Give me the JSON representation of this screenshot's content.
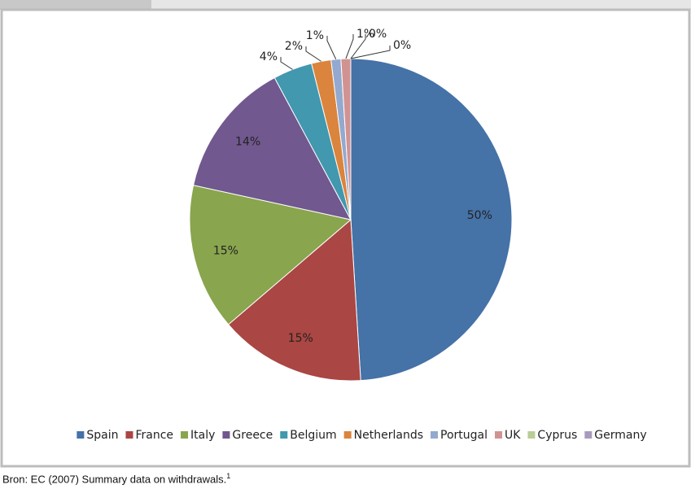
{
  "chart_data": {
    "type": "pie",
    "categories": [
      "Spain",
      "France",
      "Italy",
      "Greece",
      "Belgium",
      "Netherlands",
      "Portugal",
      "UK",
      "Cyprus",
      "Germany"
    ],
    "values": [
      50,
      15,
      15,
      14,
      4,
      2,
      1,
      1,
      0,
      0
    ],
    "value_labels": [
      "50%",
      "15%",
      "15%",
      "14%",
      "4%",
      "2%",
      "1%",
      "1%",
      "0%",
      "0%"
    ],
    "colors": [
      "#4572a7",
      "#aa4643",
      "#89a54e",
      "#71588f",
      "#4198af",
      "#db843d",
      "#93a9cf",
      "#d19392",
      "#b9cd96",
      "#a99bbd"
    ],
    "legend": "bottom"
  },
  "source": {
    "text": "Bron: EC (2007) Summary data on withdrawals.",
    "footnote": "1"
  }
}
